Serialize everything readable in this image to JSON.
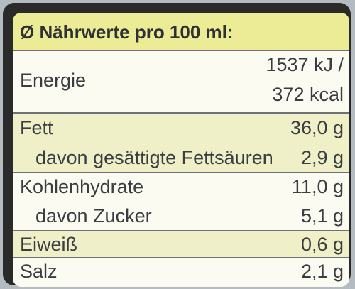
{
  "title": "Ø Nährwerte pro 100 ml:",
  "rows": [
    {
      "label": "Energie",
      "value_line1": "1537 kJ /",
      "value_line2": "372 kcal"
    },
    {
      "label": "Fett",
      "value": "36,0 g"
    },
    {
      "label": "davon gesättigte Fettsäuren",
      "value": "2,9 g"
    },
    {
      "label": "Kohlenhydrate",
      "value": "11,0 g"
    },
    {
      "label": "davon Zucker",
      "value": "5,1 g"
    },
    {
      "label": "Eiweiß",
      "value": "0,6 g"
    },
    {
      "label": "Salz",
      "value": "2,1 g"
    }
  ]
}
